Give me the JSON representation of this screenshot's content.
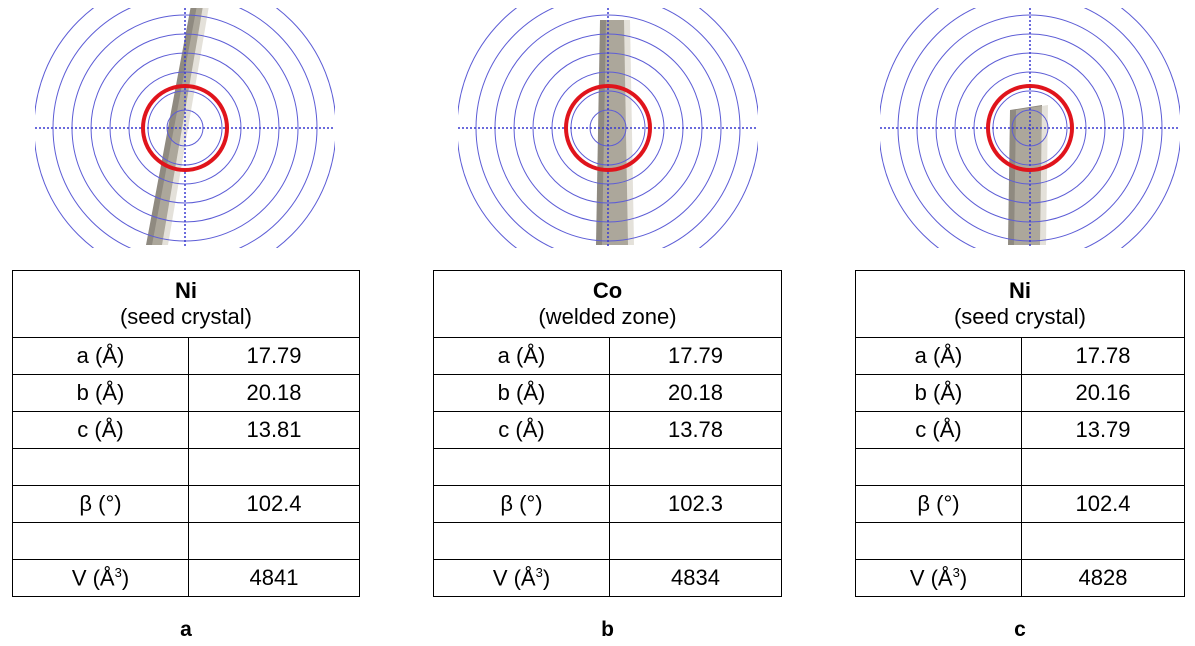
{
  "panels": [
    {
      "title": "Ni",
      "subtitle": "(seed crystal)",
      "label": "a",
      "rows": [
        {
          "label": "a (Å)",
          "value": "17.79"
        },
        {
          "label": "b (Å)",
          "value": "20.18"
        },
        {
          "label": "c (Å)",
          "value": "13.81"
        },
        {
          "label": "β (°)",
          "value": "102.4"
        },
        {
          "label": "V (Å",
          "label_sup": "3",
          "label_end": ")",
          "value": "4841"
        }
      ]
    },
    {
      "title": "Co",
      "subtitle": "(welded zone)",
      "label": "b",
      "rows": [
        {
          "label": "a (Å)",
          "value": "17.79"
        },
        {
          "label": "b (Å)",
          "value": "20.18"
        },
        {
          "label": "c (Å)",
          "value": "13.78"
        },
        {
          "label": "β (°)",
          "value": "102.3"
        },
        {
          "label": "V (Å",
          "label_sup": "3",
          "label_end": ")",
          "value": "4834"
        }
      ]
    },
    {
      "title": "Ni",
      "subtitle": "(seed crystal)",
      "label": "c",
      "rows": [
        {
          "label": "a (Å)",
          "value": "17.78"
        },
        {
          "label": "b (Å)",
          "value": "20.16"
        },
        {
          "label": "c (Å)",
          "value": "13.79"
        },
        {
          "label": "β (°)",
          "value": "102.4"
        },
        {
          "label": "V (Å",
          "label_sup": "3",
          "label_end": ")",
          "value": "4828"
        }
      ]
    }
  ]
}
